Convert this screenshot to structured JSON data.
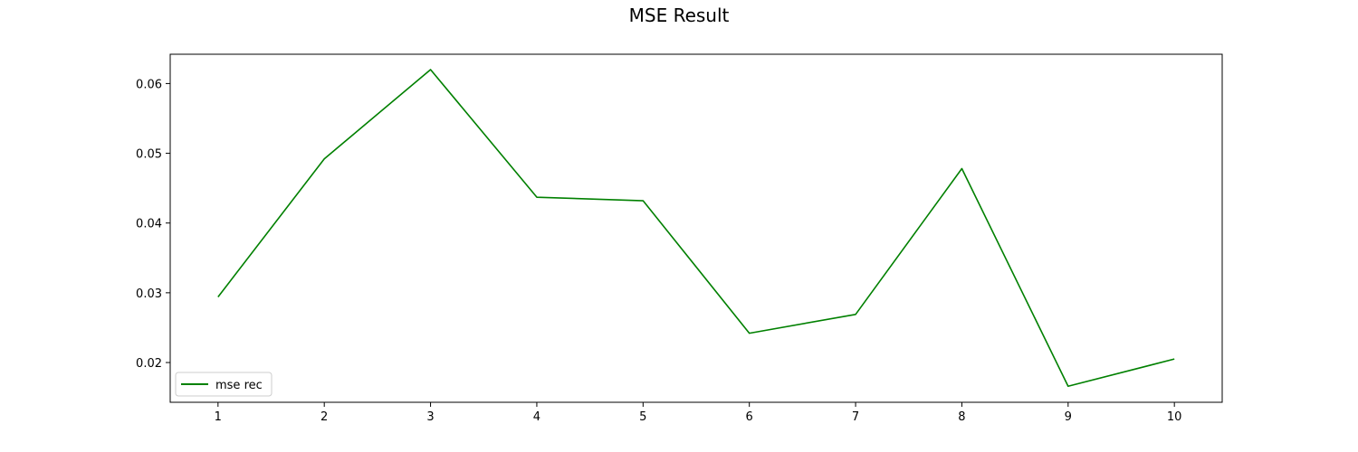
{
  "chart_data": {
    "type": "line",
    "title": "MSE Result",
    "xlabel": "",
    "ylabel": "",
    "x": [
      1,
      2,
      3,
      4,
      5,
      6,
      7,
      8,
      9,
      10
    ],
    "series": [
      {
        "name": "mse rec",
        "color": "#008000",
        "values": [
          0.0294,
          0.0492,
          0.062,
          0.0437,
          0.0432,
          0.0242,
          0.0269,
          0.0478,
          0.0166,
          0.0205
        ]
      }
    ],
    "xlim": [
      0.55,
      10.45
    ],
    "ylim": [
      0.0143,
      0.0642
    ],
    "xticks": [
      1,
      2,
      3,
      4,
      5,
      6,
      7,
      8,
      9,
      10
    ],
    "yticks": [
      0.02,
      0.03,
      0.04,
      0.05,
      0.06
    ],
    "ytick_labels": [
      "0.02",
      "0.03",
      "0.04",
      "0.05",
      "0.06"
    ],
    "grid": false,
    "legend": "lower-left"
  }
}
